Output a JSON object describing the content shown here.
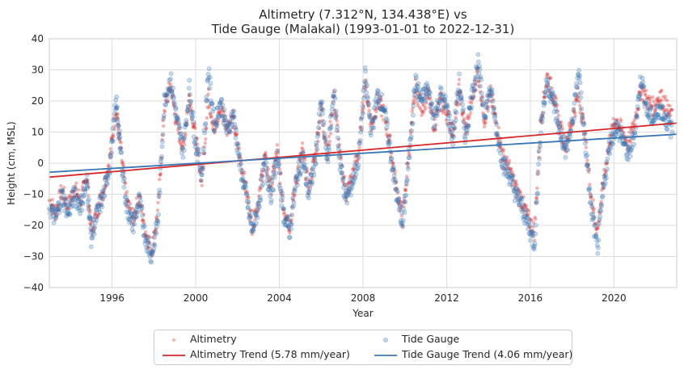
{
  "chart_data": {
    "type": "scatter",
    "title_line1": "Altimetry (7.312°N, 134.438°E) vs",
    "title_line2": "Tide Gauge (Malakal) (1993-01-01 to 2022-12-31)",
    "xlabel": "Year",
    "ylabel": "Height (cm, MSL)",
    "xlim": [
      1993.0,
      2023.0
    ],
    "ylim": [
      -40,
      40
    ],
    "xticks": [
      1996,
      2000,
      2004,
      2008,
      2012,
      2016,
      2020
    ],
    "yticks": [
      -40,
      -30,
      -20,
      -10,
      0,
      10,
      20,
      30,
      40
    ],
    "grid": true,
    "legend_position": "bottom-center",
    "series": [
      {
        "name": "Altimetry",
        "kind": "scatter",
        "color": "#d62728",
        "points": [
          [
            1993.0,
            -12
          ],
          [
            1993.3,
            -16
          ],
          [
            1993.6,
            -9
          ],
          [
            1993.9,
            -14
          ],
          [
            1994.2,
            -8
          ],
          [
            1994.5,
            -12
          ],
          [
            1994.8,
            -4
          ],
          [
            1995.0,
            -22
          ],
          [
            1995.3,
            -15
          ],
          [
            1995.6,
            -8
          ],
          [
            1995.9,
            2
          ],
          [
            1996.2,
            18
          ],
          [
            1996.4,
            5
          ],
          [
            1996.7,
            -12
          ],
          [
            1997.0,
            -18
          ],
          [
            1997.3,
            -11
          ],
          [
            1997.6,
            -22
          ],
          [
            1997.9,
            -28
          ],
          [
            1998.2,
            -15
          ],
          [
            1998.5,
            18
          ],
          [
            1998.8,
            25
          ],
          [
            1999.1,
            12
          ],
          [
            1999.4,
            5
          ],
          [
            1999.7,
            22
          ],
          [
            2000.0,
            8
          ],
          [
            2000.3,
            -6
          ],
          [
            2000.6,
            22
          ],
          [
            2000.9,
            10
          ],
          [
            2001.2,
            18
          ],
          [
            2001.5,
            12
          ],
          [
            2001.8,
            14
          ],
          [
            2002.1,
            2
          ],
          [
            2002.4,
            -8
          ],
          [
            2002.7,
            -20
          ],
          [
            2003.0,
            -12
          ],
          [
            2003.3,
            2
          ],
          [
            2003.6,
            -8
          ],
          [
            2003.9,
            4
          ],
          [
            2004.2,
            -14
          ],
          [
            2004.5,
            -20
          ],
          [
            2004.8,
            -5
          ],
          [
            2005.1,
            4
          ],
          [
            2005.4,
            -8
          ],
          [
            2005.7,
            2
          ],
          [
            2006.0,
            18
          ],
          [
            2006.3,
            2
          ],
          [
            2006.6,
            22
          ],
          [
            2006.9,
            2
          ],
          [
            2007.2,
            -10
          ],
          [
            2007.5,
            -4
          ],
          [
            2007.8,
            4
          ],
          [
            2008.1,
            26
          ],
          [
            2008.4,
            12
          ],
          [
            2008.7,
            20
          ],
          [
            2009.0,
            16
          ],
          [
            2009.3,
            6
          ],
          [
            2009.6,
            -8
          ],
          [
            2009.9,
            -18
          ],
          [
            2010.2,
            4
          ],
          [
            2010.5,
            24
          ],
          [
            2010.8,
            18
          ],
          [
            2011.1,
            22
          ],
          [
            2011.4,
            12
          ],
          [
            2011.7,
            20
          ],
          [
            2012.0,
            16
          ],
          [
            2012.3,
            10
          ],
          [
            2012.6,
            24
          ],
          [
            2012.9,
            10
          ],
          [
            2013.2,
            20
          ],
          [
            2013.5,
            30
          ],
          [
            2013.8,
            14
          ],
          [
            2014.1,
            22
          ],
          [
            2014.4,
            12
          ],
          [
            2014.7,
            2
          ],
          [
            2015.0,
            -2
          ],
          [
            2015.3,
            -8
          ],
          [
            2015.6,
            -12
          ],
          [
            2015.9,
            -18
          ],
          [
            2016.2,
            -22
          ],
          [
            2016.5,
            14
          ],
          [
            2016.8,
            28
          ],
          [
            2017.1,
            22
          ],
          [
            2017.4,
            12
          ],
          [
            2017.7,
            6
          ],
          [
            2018.0,
            14
          ],
          [
            2018.3,
            22
          ],
          [
            2018.6,
            10
          ],
          [
            2018.9,
            -10
          ],
          [
            2019.2,
            -22
          ],
          [
            2019.5,
            -6
          ],
          [
            2019.8,
            8
          ],
          [
            2020.1,
            14
          ],
          [
            2020.4,
            10
          ],
          [
            2020.7,
            6
          ],
          [
            2021.0,
            14
          ],
          [
            2021.3,
            24
          ],
          [
            2021.6,
            20
          ],
          [
            2021.9,
            18
          ],
          [
            2022.2,
            22
          ],
          [
            2022.5,
            18
          ],
          [
            2022.8,
            14
          ]
        ]
      },
      {
        "name": "Tide Gauge",
        "kind": "scatter",
        "color": "#3a78b5",
        "points": [
          [
            1993.0,
            -14
          ],
          [
            1993.3,
            -18
          ],
          [
            1993.6,
            -10
          ],
          [
            1993.9,
            -16
          ],
          [
            1994.2,
            -10
          ],
          [
            1994.5,
            -14
          ],
          [
            1994.8,
            -6
          ],
          [
            1995.0,
            -24
          ],
          [
            1995.3,
            -16
          ],
          [
            1995.6,
            -10
          ],
          [
            1995.9,
            0
          ],
          [
            1996.2,
            20
          ],
          [
            1996.4,
            4
          ],
          [
            1996.7,
            -14
          ],
          [
            1997.0,
            -20
          ],
          [
            1997.3,
            -12
          ],
          [
            1997.6,
            -24
          ],
          [
            1997.9,
            -30
          ],
          [
            1998.2,
            -18
          ],
          [
            1998.5,
            20
          ],
          [
            1998.8,
            27
          ],
          [
            1999.1,
            14
          ],
          [
            1999.4,
            4
          ],
          [
            1999.7,
            24
          ],
          [
            2000.0,
            6
          ],
          [
            2000.3,
            -4
          ],
          [
            2000.6,
            30
          ],
          [
            2000.9,
            12
          ],
          [
            2001.2,
            20
          ],
          [
            2001.5,
            10
          ],
          [
            2001.8,
            16
          ],
          [
            2002.1,
            0
          ],
          [
            2002.4,
            -10
          ],
          [
            2002.7,
            -22
          ],
          [
            2003.0,
            -14
          ],
          [
            2003.3,
            0
          ],
          [
            2003.6,
            -10
          ],
          [
            2003.9,
            2
          ],
          [
            2004.2,
            -16
          ],
          [
            2004.5,
            -22
          ],
          [
            2004.8,
            -6
          ],
          [
            2005.1,
            2
          ],
          [
            2005.4,
            -10
          ],
          [
            2005.7,
            0
          ],
          [
            2006.0,
            20
          ],
          [
            2006.3,
            0
          ],
          [
            2006.6,
            24
          ],
          [
            2006.9,
            0
          ],
          [
            2007.2,
            -12
          ],
          [
            2007.5,
            -6
          ],
          [
            2007.8,
            2
          ],
          [
            2008.1,
            28
          ],
          [
            2008.4,
            10
          ],
          [
            2008.7,
            22
          ],
          [
            2009.0,
            18
          ],
          [
            2009.3,
            4
          ],
          [
            2009.6,
            -10
          ],
          [
            2009.9,
            -20
          ],
          [
            2010.2,
            2
          ],
          [
            2010.5,
            26
          ],
          [
            2010.8,
            20
          ],
          [
            2011.1,
            24
          ],
          [
            2011.4,
            14
          ],
          [
            2011.7,
            22
          ],
          [
            2012.0,
            18
          ],
          [
            2012.3,
            8
          ],
          [
            2012.6,
            26
          ],
          [
            2012.9,
            8
          ],
          [
            2013.2,
            22
          ],
          [
            2013.5,
            32
          ],
          [
            2013.8,
            16
          ],
          [
            2014.1,
            24
          ],
          [
            2014.4,
            10
          ],
          [
            2014.7,
            0
          ],
          [
            2015.0,
            -4
          ],
          [
            2015.3,
            -10
          ],
          [
            2015.6,
            -14
          ],
          [
            2015.9,
            -20
          ],
          [
            2016.2,
            -26
          ],
          [
            2016.5,
            12
          ],
          [
            2016.8,
            26
          ],
          [
            2017.1,
            20
          ],
          [
            2017.4,
            10
          ],
          [
            2017.7,
            4
          ],
          [
            2018.0,
            12
          ],
          [
            2018.3,
            30
          ],
          [
            2018.6,
            8
          ],
          [
            2018.9,
            -14
          ],
          [
            2019.2,
            -28
          ],
          [
            2019.5,
            -8
          ],
          [
            2019.8,
            6
          ],
          [
            2020.1,
            12
          ],
          [
            2020.4,
            8
          ],
          [
            2020.7,
            2
          ],
          [
            2021.0,
            10
          ],
          [
            2021.3,
            28
          ],
          [
            2021.6,
            16
          ],
          [
            2021.9,
            14
          ],
          [
            2022.2,
            18
          ],
          [
            2022.5,
            14
          ],
          [
            2022.8,
            10
          ]
        ]
      },
      {
        "name": "Altimetry Trend (5.78 mm/year)",
        "kind": "line",
        "color": "#d62728",
        "points": [
          [
            1993.0,
            -4.5
          ],
          [
            2023.0,
            12.9
          ]
        ]
      },
      {
        "name": "Tide Gauge Trend (4.06 mm/year)",
        "kind": "line",
        "color": "#3a78b5",
        "points": [
          [
            1993.0,
            -2.9
          ],
          [
            2023.0,
            9.3
          ]
        ]
      }
    ]
  }
}
